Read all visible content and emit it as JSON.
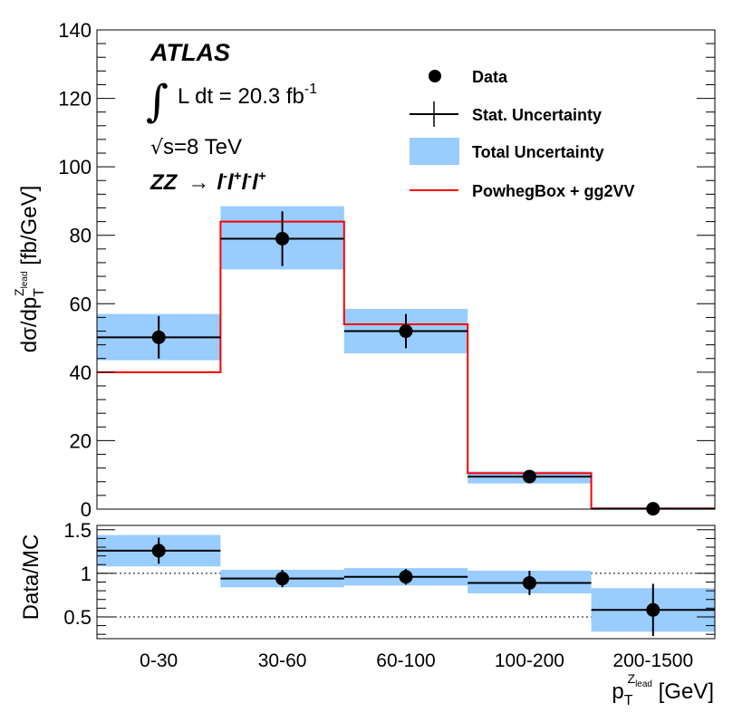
{
  "chart_data": [
    {
      "type": "bar",
      "panel": "main",
      "categories": [
        "0-30",
        "30-60",
        "60-100",
        "100-200",
        "200-1500"
      ],
      "ylabel": "dσ/dp_T^{Z_lead} [fb/GeV]",
      "ylabel_parts": {
        "main": "dσ/dp",
        "sub": "T",
        "sup": "Z",
        "supsub": "lead",
        "unit": " [fb/GeV]"
      },
      "ylim": [
        0,
        140
      ],
      "yticks": [
        "0",
        "20",
        "40",
        "60",
        "80",
        "100",
        "120",
        "140"
      ],
      "series": [
        {
          "name": "Data",
          "values": [
            50.2,
            79.0,
            52.0,
            9.5,
            0.1
          ],
          "stat_err": [
            6.2,
            8.0,
            5.0,
            1.2,
            0.3
          ]
        },
        {
          "name": "Total Uncertainty",
          "lower": [
            43.5,
            70.0,
            45.5,
            7.5,
            0.0
          ],
          "upper": [
            57.0,
            88.5,
            58.5,
            11.0,
            0.3
          ]
        },
        {
          "name": "PowhegBox + gg2VV",
          "values": [
            40.0,
            84.0,
            54.0,
            10.5,
            0.2
          ]
        }
      ],
      "legend": {
        "position": "top-right",
        "entries": [
          "Data",
          "Stat. Uncertainty",
          "Total Uncertainty",
          "PowhegBox + gg2VV"
        ]
      },
      "annotations": {
        "atlas": "ATLAS",
        "integral_symbol": "∫",
        "lumi_text": "L dt = 20.3 fb",
        "lumi_sup": "-1",
        "sqrt_symbol": "√",
        "energy_text": "s=8 TeV",
        "process_text": "ZZ",
        "arrow": "→",
        "lep1": "l",
        "lep1_sup": "-",
        "lep2": "l",
        "lep2_sup": "+",
        "lep3": "l",
        "lep3_sup": "-",
        "lep4": "l",
        "lep4_sup": "+"
      },
      "colors": {
        "data": "#000000",
        "total_band": "#99ccff",
        "mc": "#ff0000"
      }
    },
    {
      "type": "bar",
      "panel": "ratio",
      "categories": [
        "0-30",
        "30-60",
        "60-100",
        "100-200",
        "200-1500"
      ],
      "ylabel": "Data/MC",
      "ylim": [
        0.25,
        1.55
      ],
      "yticks": [
        "0.5",
        "1",
        "1.5"
      ],
      "reference_lines": [
        0.5,
        1.0
      ],
      "series": [
        {
          "name": "Data/MC",
          "values": [
            1.26,
            0.94,
            0.96,
            0.89,
            0.58
          ],
          "stat_err": [
            0.15,
            0.1,
            0.09,
            0.14,
            0.3
          ]
        },
        {
          "name": "Total Uncertainty",
          "lower": [
            1.08,
            0.84,
            0.86,
            0.77,
            0.33
          ],
          "upper": [
            1.44,
            1.04,
            1.06,
            1.03,
            0.83
          ]
        }
      ]
    }
  ],
  "xaxis": {
    "title_main": "p",
    "title_sub": "T",
    "title_sup": "Z",
    "title_supsub": "lead",
    "title_unit": " [GeV]"
  }
}
